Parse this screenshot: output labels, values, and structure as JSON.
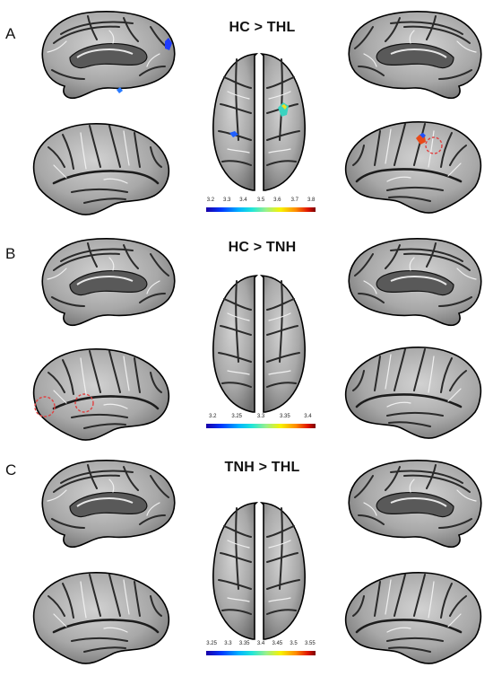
{
  "panels": [
    {
      "label": "A",
      "title": "HC > THL",
      "colorbar": {
        "ticks": [
          "3.2",
          "3.3",
          "3.4",
          "3.5",
          "3.6",
          "3.7",
          "3.8"
        ]
      }
    },
    {
      "label": "B",
      "title": "HC > TNH",
      "colorbar": {
        "ticks": [
          "3.2",
          "3.25",
          "3.3",
          "3.35",
          "3.4"
        ]
      }
    },
    {
      "label": "C",
      "title": "TNH > THL",
      "colorbar": {
        "ticks": [
          "3.25",
          "3.3",
          "3.35",
          "3.4",
          "3.45",
          "3.5",
          "3.55"
        ]
      }
    }
  ],
  "colors": {
    "cortex": "#a9a9a9",
    "sulcus": "#3a3a3a",
    "boundary": "#000000",
    "marker_circle": "#e04040"
  }
}
